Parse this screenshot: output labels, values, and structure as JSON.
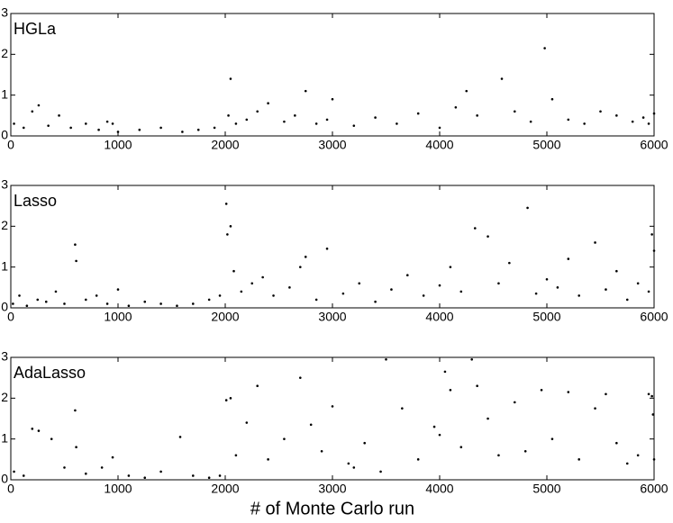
{
  "chart_data": [
    {
      "type": "scatter",
      "title": "HGLa",
      "color": "#000000",
      "x": [
        30,
        120,
        200,
        260,
        350,
        450,
        560,
        700,
        820,
        900,
        950,
        1000,
        1200,
        1400,
        1600,
        1750,
        1900,
        2030,
        2050,
        2100,
        2200,
        2300,
        2400,
        2550,
        2650,
        2750,
        2850,
        2950,
        3000,
        3200,
        3400,
        3600,
        3800,
        4000,
        4150,
        4250,
        4350,
        4580,
        4700,
        4850,
        4980,
        5050,
        5200,
        5350,
        5500,
        5650,
        5800,
        5900,
        5950,
        6000
      ],
      "values": [
        0.3,
        0.2,
        0.6,
        0.75,
        0.25,
        0.5,
        0.2,
        0.3,
        0.15,
        0.35,
        0.3,
        0.1,
        0.15,
        0.2,
        0.1,
        0.15,
        0.2,
        0.5,
        1.4,
        0.3,
        0.4,
        0.6,
        0.8,
        0.35,
        0.5,
        1.1,
        0.3,
        0.4,
        0.9,
        0.25,
        0.45,
        0.3,
        0.55,
        0.2,
        0.7,
        1.1,
        0.5,
        1.4,
        0.6,
        0.35,
        2.15,
        0.9,
        0.4,
        0.3,
        0.6,
        0.5,
        0.35,
        0.45,
        0.3,
        0.55
      ],
      "xlim": [
        0,
        6000
      ],
      "ylim": [
        0,
        3
      ],
      "xticks": [
        0,
        1000,
        2000,
        3000,
        4000,
        5000,
        6000
      ],
      "yticks": [
        0,
        1,
        2,
        3
      ]
    },
    {
      "type": "scatter",
      "title": "Lasso",
      "color": "#000000",
      "x": [
        20,
        80,
        150,
        250,
        330,
        420,
        500,
        600,
        610,
        700,
        800,
        900,
        1000,
        1100,
        1250,
        1400,
        1550,
        1700,
        1850,
        1950,
        2010,
        2020,
        2050,
        2080,
        2150,
        2250,
        2350,
        2450,
        2600,
        2700,
        2750,
        2850,
        2950,
        3100,
        3250,
        3400,
        3550,
        3700,
        3850,
        4000,
        4100,
        4200,
        4330,
        4450,
        4550,
        4650,
        4820,
        4900,
        5000,
        5100,
        5200,
        5300,
        5450,
        5550,
        5650,
        5750,
        5850,
        5950,
        5980,
        6000
      ],
      "values": [
        0.1,
        0.3,
        0.05,
        0.2,
        0.15,
        0.4,
        0.1,
        1.55,
        1.15,
        0.2,
        0.3,
        0.1,
        0.45,
        0.05,
        0.15,
        0.1,
        0.05,
        0.1,
        0.2,
        0.3,
        2.55,
        1.8,
        2.0,
        0.9,
        0.4,
        0.6,
        0.75,
        0.3,
        0.5,
        1.0,
        1.25,
        0.2,
        1.45,
        0.35,
        0.6,
        0.15,
        0.45,
        0.8,
        0.3,
        0.55,
        1.0,
        0.4,
        1.95,
        1.75,
        0.6,
        1.1,
        2.45,
        0.35,
        0.7,
        0.5,
        1.2,
        0.3,
        1.6,
        0.45,
        0.9,
        0.2,
        0.6,
        0.4,
        1.8,
        1.4
      ],
      "xlim": [
        0,
        6000
      ],
      "ylim": [
        0,
        3
      ],
      "xticks": [
        0,
        1000,
        2000,
        3000,
        4000,
        5000,
        6000
      ],
      "yticks": [
        0,
        1,
        2,
        3
      ]
    },
    {
      "type": "scatter",
      "title": "AdaLasso",
      "color": "#000000",
      "xlabel": "# of Monte Carlo run",
      "x": [
        30,
        120,
        200,
        260,
        380,
        500,
        600,
        610,
        700,
        850,
        950,
        1100,
        1250,
        1400,
        1580,
        1700,
        1850,
        1950,
        2010,
        2050,
        2100,
        2200,
        2300,
        2400,
        2550,
        2700,
        2800,
        2900,
        3000,
        3150,
        3300,
        3450,
        3500,
        3650,
        3800,
        3950,
        4050,
        4100,
        4200,
        4300,
        4350,
        4450,
        4550,
        4700,
        4800,
        4950,
        5050,
        5200,
        5300,
        5450,
        5550,
        5650,
        5750,
        5850,
        5950,
        5980,
        5990,
        6000,
        4000,
        3200
      ],
      "values": [
        0.2,
        0.1,
        1.25,
        1.2,
        1.0,
        0.3,
        1.7,
        0.8,
        0.15,
        0.3,
        0.55,
        0.1,
        0.05,
        0.2,
        1.05,
        0.1,
        0.05,
        0.1,
        1.95,
        2.0,
        0.6,
        1.4,
        2.3,
        0.5,
        1.0,
        2.5,
        1.35,
        0.7,
        1.8,
        0.4,
        0.9,
        0.2,
        2.95,
        1.75,
        0.5,
        1.3,
        2.65,
        2.2,
        0.8,
        2.95,
        2.3,
        1.5,
        0.6,
        1.9,
        0.7,
        2.2,
        1.0,
        2.15,
        0.5,
        1.75,
        2.1,
        0.9,
        0.4,
        0.6,
        2.1,
        2.05,
        1.6,
        0.5,
        1.1,
        0.3
      ],
      "xlim": [
        0,
        6000
      ],
      "ylim": [
        0,
        3
      ],
      "xticks": [
        0,
        1000,
        2000,
        3000,
        4000,
        5000,
        6000
      ],
      "yticks": [
        0,
        1,
        2,
        3
      ]
    }
  ]
}
